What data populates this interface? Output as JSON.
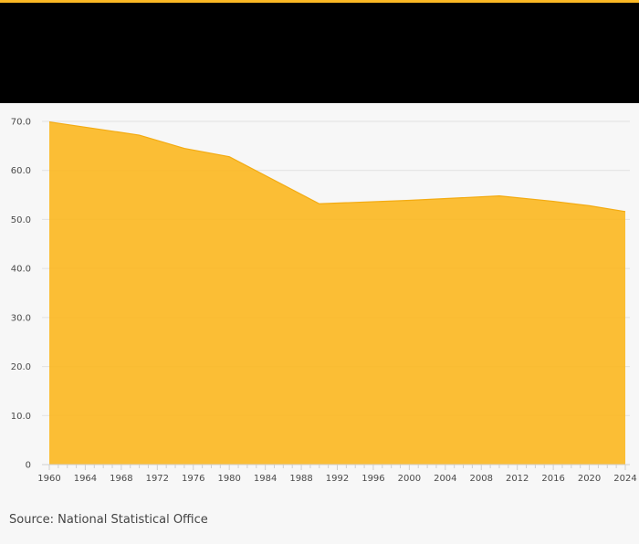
{
  "chart_data": {
    "type": "area",
    "x": [
      1960,
      1970,
      1975,
      1980,
      1990,
      2000,
      2010,
      2016,
      2020,
      2024
    ],
    "values": [
      69.9,
      67.2,
      64.5,
      62.8,
      53.2,
      53.9,
      54.8,
      53.7,
      52.8,
      51.6
    ],
    "x_ticks": [
      1960,
      1964,
      1968,
      1972,
      1976,
      1980,
      1984,
      1988,
      1992,
      1996,
      2000,
      2004,
      2008,
      2012,
      2016,
      2020,
      2024
    ],
    "y_ticks": [
      "0",
      "10.0",
      "20.0",
      "30.0",
      "40.0",
      "50.0",
      "60.0",
      "70.0"
    ],
    "xlim": [
      1960,
      2024
    ],
    "ylim": [
      0,
      70
    ],
    "grid": true,
    "title": "",
    "xlabel": "",
    "ylabel": ""
  },
  "colors": {
    "accent": "#fbb824",
    "area_fill": "#fbb824",
    "header_band": "#000000",
    "background": "#f7f7f7"
  },
  "footer": {
    "source": "Source: National Statistical Office"
  }
}
